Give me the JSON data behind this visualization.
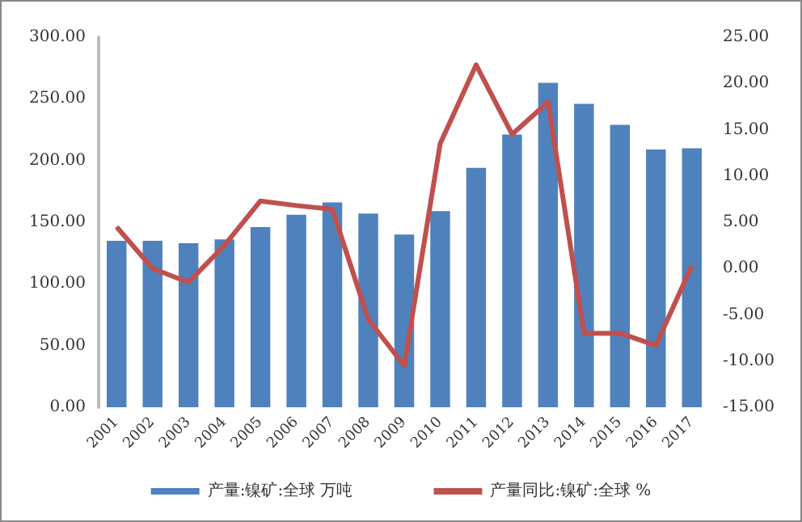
{
  "chart_data": {
    "type": "bar",
    "categories": [
      "2001",
      "2002",
      "2003",
      "2004",
      "2005",
      "2006",
      "2007",
      "2008",
      "2009",
      "2010",
      "2011",
      "2012",
      "2013",
      "2014",
      "2015",
      "2016",
      "2017"
    ],
    "series": [
      {
        "name": "产量:镍矿:全球 万吨",
        "color": "#4f81bd",
        "values": [
          135,
          135,
          133,
          136,
          146,
          156,
          166,
          157,
          140,
          159,
          194,
          221,
          263,
          246,
          229,
          209,
          210
        ]
      },
      {
        "name": "产量同比:镍矿:全球 %",
        "type": "line",
        "axis": "y2",
        "color": "#c0504d",
        "values": [
          4.5,
          0,
          -1.5,
          2.5,
          7.3,
          6.8,
          6.4,
          -5.5,
          -10.5,
          13.5,
          22,
          14.5,
          18,
          -7,
          -7,
          -8.3,
          0.3
        ]
      }
    ],
    "ylim": [
      0,
      300
    ],
    "yticks": [
      {
        "value": 0,
        "label": "0.00"
      },
      {
        "value": 50,
        "label": "50.00"
      },
      {
        "value": 100,
        "label": "100.00"
      },
      {
        "value": 150,
        "label": "150.00"
      },
      {
        "value": 200,
        "label": "200.00"
      },
      {
        "value": 250,
        "label": "250.00"
      },
      {
        "value": 300,
        "label": "300.00"
      }
    ],
    "y2lim": [
      -15,
      25
    ],
    "y2ticks": [
      {
        "value": -15,
        "label": "-15.00"
      },
      {
        "value": -10,
        "label": "-10.00"
      },
      {
        "value": -5,
        "label": "-5.00"
      },
      {
        "value": 0,
        "label": "0.00"
      },
      {
        "value": 5,
        "label": "5.00"
      },
      {
        "value": 10,
        "label": "10.00"
      },
      {
        "value": 15,
        "label": "15.00"
      },
      {
        "value": 20,
        "label": "20.00"
      },
      {
        "value": 25,
        "label": "25.00"
      }
    ],
    "legend": "bottom",
    "grid": false,
    "marker": "none"
  }
}
